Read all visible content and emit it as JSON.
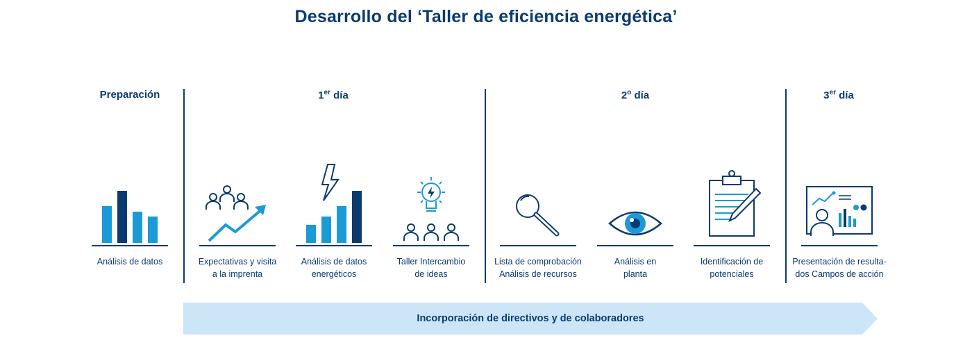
{
  "title": "Desarrollo del ‘Taller de eficiencia energética’",
  "phases": [
    {
      "label": "Preparación",
      "sup": ""
    },
    {
      "label": "1",
      "sup": "er",
      "suffix": " día"
    },
    {
      "label": "2",
      "sup": "o",
      "suffix": " día"
    },
    {
      "label": "3",
      "sup": "er",
      "suffix": " día"
    }
  ],
  "steps": [
    {
      "icon": "bar-chart-icon",
      "line1": "Análisis de datos",
      "line2": ""
    },
    {
      "icon": "team-growth-icon",
      "line1": "Expectativas y visita",
      "line2": "a la imprenta"
    },
    {
      "icon": "energy-chart-icon",
      "line1": "Análisis de datos",
      "line2": "energéticos"
    },
    {
      "icon": "idea-team-icon",
      "line1": "Taller Intercambio",
      "line2": "de ideas"
    },
    {
      "icon": "magnifier-icon",
      "line1": "Lista de comprobación",
      "line2": "Análisis de recursos"
    },
    {
      "icon": "eye-icon",
      "line1": "Análisis en",
      "line2": "planta"
    },
    {
      "icon": "clipboard-icon",
      "line1": "Identificación de",
      "line2": "potenciales"
    },
    {
      "icon": "presentation-icon",
      "line1": "Presentación de resulta-",
      "line2": "dos Campos de acción"
    }
  ],
  "banner": "Incorporación de directivos y de colaboradores",
  "colors": {
    "navy": "#0b3a6e",
    "blue": "#1a9ad6",
    "light": "#cde6f7"
  }
}
